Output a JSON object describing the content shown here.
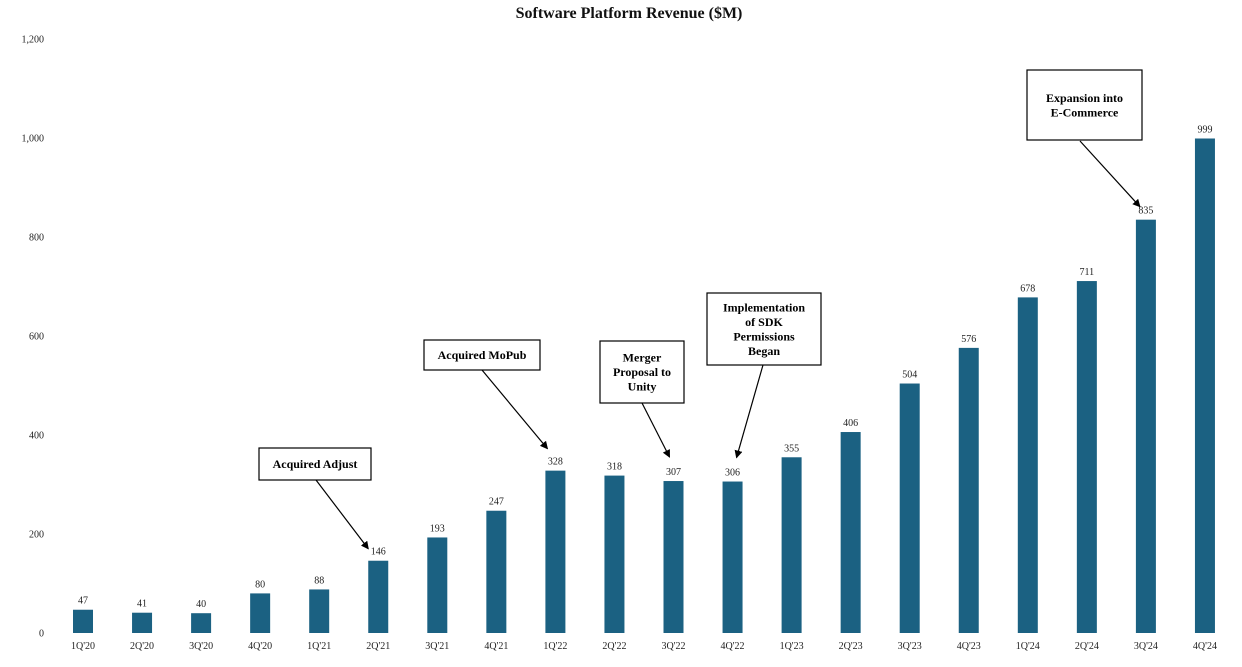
{
  "chart_data": {
    "type": "bar",
    "title": "Software Platform Revenue ($M)",
    "xlabel": "",
    "ylabel": "",
    "ylim": [
      0,
      1200
    ],
    "yticks": [
      0,
      200,
      400,
      600,
      800,
      1000,
      1200
    ],
    "ytick_labels": [
      "0",
      "200",
      "400",
      "600",
      "800",
      "1,000",
      "1,200"
    ],
    "grid": false,
    "legend": "none",
    "bar_color": "#1b6182",
    "categories": [
      "1Q'20",
      "2Q'20",
      "3Q'20",
      "4Q'20",
      "1Q'21",
      "2Q'21",
      "3Q'21",
      "4Q'21",
      "1Q'22",
      "2Q'22",
      "3Q'22",
      "4Q'22",
      "1Q'23",
      "2Q'23",
      "3Q'23",
      "4Q'23",
      "1Q'24",
      "2Q'24",
      "3Q'24",
      "4Q'24"
    ],
    "values": [
      47,
      41,
      40,
      80,
      88,
      146,
      193,
      247,
      328,
      318,
      307,
      306,
      355,
      406,
      504,
      576,
      678,
      711,
      835,
      999
    ],
    "annotations": [
      {
        "lines": [
          "Acquired Adjust"
        ],
        "category": "2Q'21"
      },
      {
        "lines": [
          "Acquired MoPub"
        ],
        "category": "1Q'22"
      },
      {
        "lines": [
          "Merger",
          "Proposal to",
          "Unity"
        ],
        "category": "3Q'22"
      },
      {
        "lines": [
          "Implementation",
          "of SDK",
          "Permissions",
          "Began"
        ],
        "category": "4Q'22"
      },
      {
        "lines": [
          "Expansion into",
          "E-Commerce"
        ],
        "category": "3Q'24"
      }
    ]
  }
}
